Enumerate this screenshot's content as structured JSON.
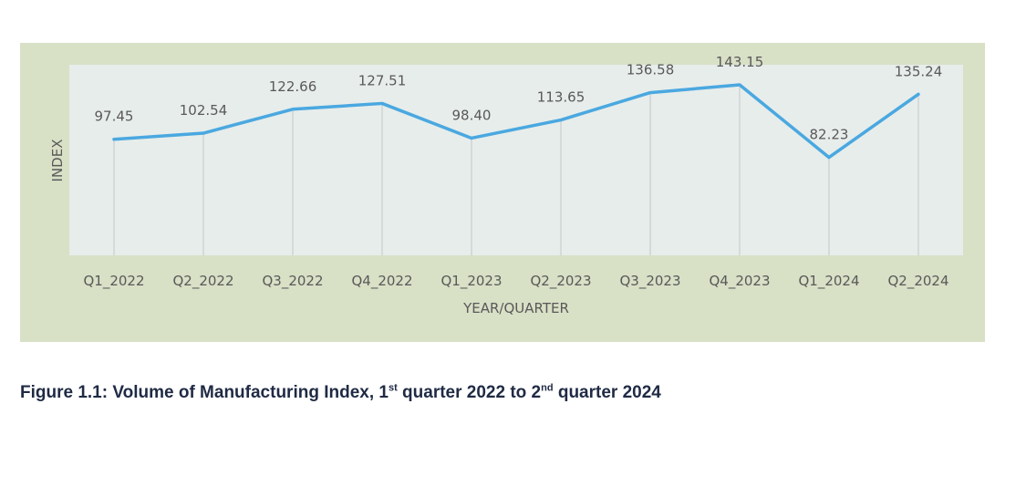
{
  "chart_data": {
    "type": "line",
    "categories": [
      "Q1_2022",
      "Q2_2022",
      "Q3_2022",
      "Q4_2022",
      "Q1_2023",
      "Q2_2023",
      "Q3_2023",
      "Q4_2023",
      "Q1_2024",
      "Q2_2024"
    ],
    "series": [
      {
        "values": [
          97.45,
          102.54,
          122.66,
          127.51,
          98.4,
          113.65,
          136.58,
          143.15,
          82.23,
          135.24
        ],
        "labels": [
          "97.45",
          "102.54",
          "122.66",
          "127.51",
          "98.40",
          "113.65",
          "136.58",
          "143.15",
          "82.23",
          "135.24"
        ],
        "color": "#4aa8e0"
      }
    ],
    "xlabel": "YEAR/QUARTER",
    "ylabel": "INDEX",
    "ylim": [
      0,
      160
    ],
    "grid": "vertical",
    "colors": {
      "outer_background": "#d8e0c6",
      "plot_background": "#e7edeb",
      "gridline": "#cfd4d4",
      "line": "#4aa8e0",
      "text": "#595959"
    }
  },
  "caption": {
    "prefix": "Figure 1.1: Volume of Manufacturing Index, 1",
    "sup1": "st",
    "middle": " quarter 2022 to 2",
    "sup2": "nd",
    "suffix": " quarter 2024"
  }
}
